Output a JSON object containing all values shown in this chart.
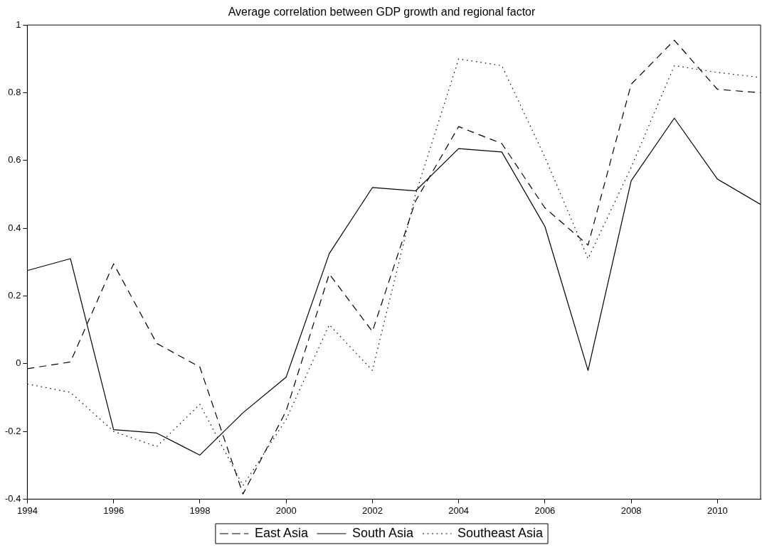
{
  "chart_data": {
    "type": "line",
    "title": "Average correlation between GDP growth and regional factor",
    "x": [
      1994,
      1995,
      1996,
      1997,
      1998,
      1999,
      2000,
      2001,
      2002,
      2003,
      2004,
      2005,
      2006,
      2007,
      2008,
      2009,
      2010,
      2011
    ],
    "series": [
      {
        "name": "East Asia",
        "color": "#000000",
        "line_style": "dashed",
        "values": [
          -0.015,
          0.005,
          0.295,
          0.06,
          -0.01,
          -0.385,
          -0.14,
          0.265,
          0.095,
          0.48,
          0.7,
          0.65,
          0.46,
          0.35,
          0.825,
          0.955,
          0.81,
          0.8
        ]
      },
      {
        "name": "South Asia",
        "color": "#000000",
        "line_style": "solid",
        "values": [
          0.275,
          0.31,
          -0.195,
          -0.205,
          -0.27,
          -0.145,
          -0.04,
          0.325,
          0.52,
          0.51,
          0.635,
          0.625,
          0.405,
          -0.02,
          0.54,
          0.725,
          0.545,
          0.47
        ]
      },
      {
        "name": "Southeast Asia",
        "color": "#000000",
        "line_style": "dotted",
        "values": [
          -0.06,
          -0.085,
          -0.2,
          -0.245,
          -0.12,
          -0.36,
          -0.165,
          0.115,
          -0.02,
          0.5,
          0.9,
          0.88,
          0.61,
          0.31,
          0.58,
          0.88,
          0.86,
          0.845
        ]
      }
    ],
    "xlim": [
      1994,
      2011
    ],
    "xticks": [
      1994,
      1996,
      1998,
      2000,
      2002,
      2004,
      2006,
      2008,
      2010
    ],
    "ylim": [
      -0.4,
      1
    ],
    "yticks": [
      -0.4,
      -0.2,
      0,
      0.2,
      0.4,
      0.6,
      0.8,
      1
    ],
    "grid": false,
    "legend": "bottom",
    "marker": "none"
  }
}
